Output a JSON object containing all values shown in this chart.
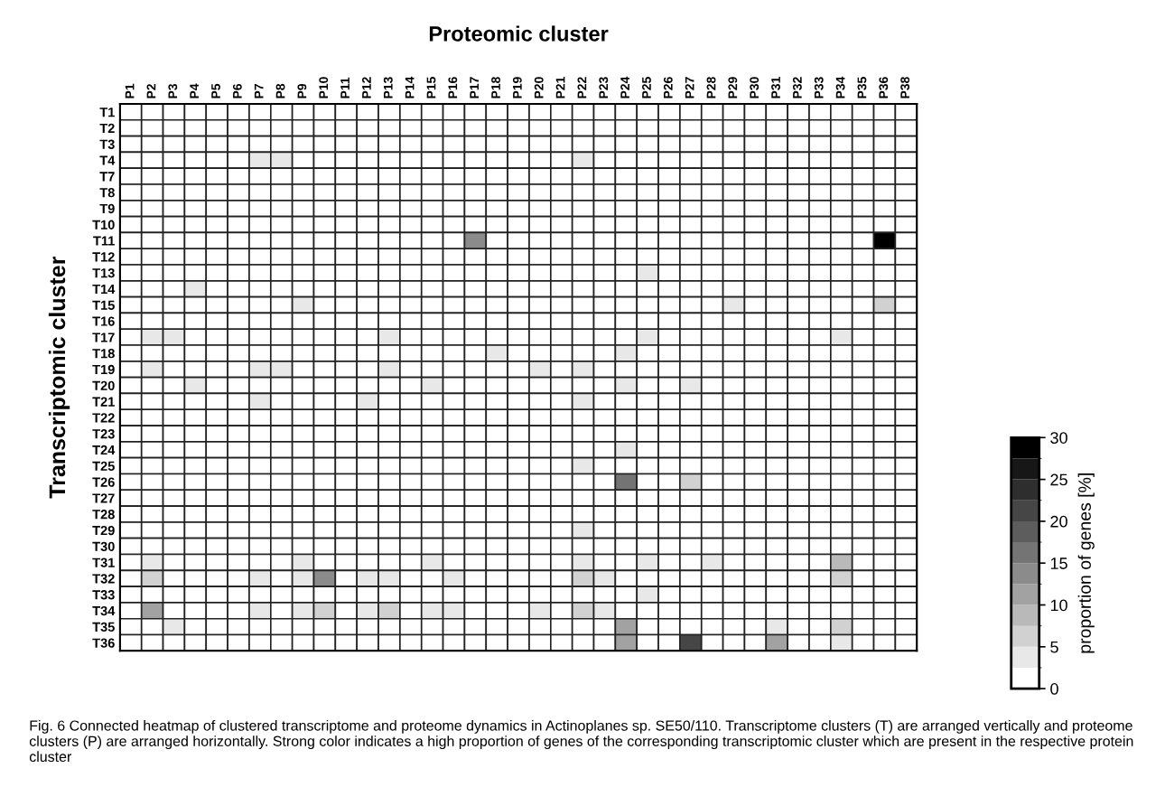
{
  "chart_data": {
    "type": "heatmap",
    "title": "Proteomic cluster",
    "ylabel": "Transcriptomic cluster",
    "clabel": "proportion of genes [%]",
    "categories": [
      "P1",
      "P2",
      "P3",
      "P4",
      "P5",
      "P6",
      "P7",
      "P8",
      "P9",
      "P10",
      "P11",
      "P12",
      "P13",
      "P14",
      "P15",
      "P16",
      "P17",
      "P18",
      "P19",
      "P20",
      "P21",
      "P22",
      "P23",
      "P24",
      "P25",
      "P26",
      "P27",
      "P28",
      "P29",
      "P30",
      "P31",
      "P32",
      "P33",
      "P34",
      "P35",
      "P36",
      "P38"
    ],
    "y_categories": [
      "T1",
      "T2",
      "T3",
      "T4",
      "T7",
      "T8",
      "T9",
      "T10",
      "T11",
      "T12",
      "T13",
      "T14",
      "T15",
      "T16",
      "T17",
      "T18",
      "T19",
      "T20",
      "T21",
      "T22",
      "T23",
      "T24",
      "T25",
      "T26",
      "T27",
      "T28",
      "T29",
      "T30",
      "T31",
      "T32",
      "T33",
      "T34",
      "T35",
      "T36"
    ],
    "clim": [
      0,
      30
    ],
    "cticks": [
      0,
      5,
      10,
      15,
      20,
      25,
      30
    ],
    "cells": [
      [
        0,
        0,
        0,
        0,
        0,
        0,
        0,
        0,
        0,
        0,
        0,
        0,
        0,
        0,
        0,
        0,
        0,
        0,
        0,
        0,
        0,
        0,
        0,
        0,
        0,
        0,
        0,
        0,
        0,
        0,
        0,
        0,
        0,
        0,
        0,
        0,
        0
      ],
      [
        1,
        0,
        1,
        2,
        1,
        2,
        0,
        0,
        0,
        0,
        0,
        0,
        1,
        1,
        1,
        0,
        1,
        0,
        0,
        0,
        0,
        0,
        0,
        2,
        1,
        0,
        0,
        0,
        1,
        0,
        0,
        1,
        0,
        1,
        0,
        0,
        1
      ],
      [
        0,
        0,
        0,
        0,
        0,
        0,
        0,
        0,
        0,
        0,
        0,
        0,
        0,
        0,
        0,
        0,
        0,
        0,
        0,
        0,
        0,
        0,
        0,
        0,
        0,
        0,
        0,
        0,
        0,
        0,
        0,
        0,
        0,
        0,
        0,
        0,
        0
      ],
      [
        0,
        2,
        0,
        1,
        1,
        1,
        3,
        3,
        1,
        2,
        0,
        2,
        2,
        0,
        0,
        2,
        1,
        0,
        1,
        2,
        0,
        4,
        0,
        0,
        1,
        0,
        0,
        2,
        0,
        0,
        0,
        0,
        0,
        0,
        0,
        0,
        0
      ],
      [
        0,
        0,
        0,
        0,
        0,
        0,
        0,
        0,
        0,
        0,
        0,
        0,
        0,
        0,
        0,
        0,
        0,
        0,
        0,
        0,
        0,
        0,
        0,
        0,
        0,
        0,
        0,
        0,
        0,
        0,
        0,
        0,
        0,
        1,
        0,
        0,
        0
      ],
      [
        0,
        0,
        0,
        0,
        0,
        0,
        0,
        0,
        0,
        0,
        0,
        0,
        0,
        0,
        0,
        0,
        1,
        0,
        0,
        0,
        0,
        0,
        0,
        0,
        0,
        0,
        0,
        0,
        0,
        0,
        0,
        0,
        1,
        0,
        0,
        0,
        0
      ],
      [
        0,
        0,
        0,
        0,
        0,
        0,
        0,
        0,
        0,
        0,
        0,
        0,
        0,
        0,
        0,
        0,
        0,
        0,
        0,
        0,
        0,
        0,
        0,
        0,
        0,
        0,
        0,
        0,
        0,
        0,
        0,
        0,
        0,
        0,
        0,
        0,
        0
      ],
      [
        1,
        1,
        0,
        1,
        1,
        0,
        0,
        0,
        0,
        0,
        0,
        1,
        0,
        0,
        0,
        0,
        0,
        0,
        0,
        0,
        0,
        0,
        0,
        0,
        0,
        0,
        1,
        2,
        0,
        0,
        0,
        0,
        0,
        1,
        0,
        0,
        0
      ],
      [
        0,
        0,
        0,
        0,
        0,
        0,
        0,
        0,
        0,
        0,
        0,
        0,
        0,
        0,
        0,
        0,
        13,
        0,
        0,
        0,
        0,
        0,
        0,
        0,
        0,
        0,
        0,
        0,
        0,
        0,
        0,
        0,
        0,
        0,
        0,
        30,
        0
      ],
      [
        0,
        0,
        0,
        0,
        0,
        0,
        0,
        0,
        0,
        0,
        0,
        0,
        0,
        0,
        0,
        0,
        0,
        0,
        0,
        0,
        0,
        0,
        0,
        0,
        0,
        0,
        0,
        0,
        0,
        0,
        0,
        0,
        0,
        0,
        0,
        0,
        0
      ],
      [
        0,
        1,
        2,
        0,
        0,
        0,
        2,
        2,
        0,
        0,
        0,
        0,
        1,
        1,
        0,
        0,
        0,
        0,
        0,
        0,
        1,
        1,
        0,
        0,
        3,
        0,
        0,
        0,
        0,
        0,
        0,
        0,
        0,
        1,
        0,
        0,
        0
      ],
      [
        0,
        0,
        0,
        3,
        0,
        1,
        0,
        2,
        0,
        1,
        0,
        0,
        0,
        0,
        0,
        2,
        1,
        1,
        0,
        0,
        0,
        0,
        0,
        2,
        0,
        0,
        0,
        0,
        0,
        1,
        0,
        0,
        0,
        0,
        0,
        0,
        1
      ],
      [
        0,
        0,
        0,
        0,
        1,
        0,
        0,
        0,
        3,
        0,
        0,
        0,
        0,
        0,
        0,
        0,
        2,
        1,
        0,
        0,
        0,
        0,
        0,
        0,
        0,
        0,
        0,
        0,
        3,
        0,
        0,
        0,
        0,
        0,
        0,
        7,
        0
      ],
      [
        0,
        0,
        0,
        0,
        0,
        0,
        0,
        0,
        0,
        0,
        0,
        0,
        0,
        0,
        0,
        0,
        0,
        2,
        0,
        0,
        0,
        0,
        0,
        1,
        0,
        0,
        0,
        0,
        0,
        0,
        0,
        0,
        0,
        0,
        0,
        0,
        0
      ],
      [
        0,
        4,
        3,
        1,
        1,
        1,
        2,
        1,
        2,
        1,
        0,
        1,
        3,
        0,
        2,
        1,
        1,
        0,
        0,
        1,
        1,
        2,
        1,
        0,
        3,
        0,
        1,
        1,
        0,
        0,
        0,
        0,
        1,
        3,
        1,
        0,
        0
      ],
      [
        0,
        0,
        0,
        0,
        0,
        0,
        0,
        0,
        0,
        0,
        0,
        0,
        0,
        0,
        0,
        0,
        0,
        4,
        0,
        0,
        0,
        0,
        0,
        4,
        0,
        1,
        1,
        0,
        0,
        0,
        1,
        0,
        2,
        1,
        2,
        0,
        0
      ],
      [
        0,
        4,
        2,
        0,
        1,
        1,
        3,
        3,
        0,
        2,
        1,
        2,
        3,
        0,
        2,
        1,
        1,
        1,
        0,
        4,
        0,
        3,
        2,
        0,
        1,
        0,
        0,
        0,
        2,
        0,
        0,
        0,
        0,
        2,
        0,
        0,
        0
      ],
      [
        0,
        1,
        2,
        3,
        0,
        1,
        1,
        0,
        0,
        1,
        0,
        1,
        1,
        0,
        3,
        0,
        1,
        1,
        0,
        0,
        0,
        1,
        1,
        3,
        1,
        0,
        4,
        0,
        0,
        0,
        1,
        1,
        1,
        0,
        0,
        0,
        0
      ],
      [
        0,
        1,
        0,
        0,
        1,
        2,
        3,
        1,
        2,
        2,
        1,
        4,
        2,
        0,
        1,
        2,
        1,
        1,
        1,
        1,
        0,
        4,
        0,
        0,
        2,
        0,
        0,
        1,
        1,
        1,
        0,
        0,
        0,
        2,
        0,
        0,
        0
      ],
      [
        0,
        0,
        0,
        0,
        1,
        0,
        0,
        0,
        0,
        0,
        0,
        0,
        0,
        1,
        0,
        0,
        0,
        0,
        1,
        1,
        0,
        1,
        0,
        0,
        0,
        0,
        0,
        0,
        1,
        0,
        0,
        0,
        0,
        1,
        0,
        0,
        0
      ],
      [
        0,
        0,
        0,
        0,
        0,
        0,
        0,
        0,
        0,
        0,
        0,
        0,
        0,
        0,
        0,
        0,
        1,
        0,
        1,
        1,
        1,
        0,
        0,
        1,
        1,
        0,
        0,
        0,
        0,
        0,
        0,
        0,
        0,
        1,
        0,
        0,
        0
      ],
      [
        0,
        0,
        1,
        1,
        0,
        0,
        0,
        0,
        0,
        0,
        0,
        0,
        0,
        0,
        0,
        0,
        2,
        2,
        0,
        0,
        0,
        0,
        0,
        4,
        0,
        0,
        2,
        0,
        0,
        0,
        0,
        0,
        0,
        1,
        0,
        0,
        0
      ],
      [
        0,
        2,
        1,
        1,
        1,
        1,
        1,
        2,
        0,
        0,
        0,
        0,
        0,
        0,
        0,
        0,
        0,
        0,
        0,
        0,
        0,
        3,
        0,
        2,
        1,
        0,
        1,
        0,
        0,
        0,
        1,
        0,
        1,
        0,
        0,
        0,
        0
      ],
      [
        0,
        0,
        0,
        0,
        0,
        1,
        0,
        0,
        0,
        0,
        0,
        0,
        0,
        0,
        0,
        2,
        0,
        1,
        1,
        1,
        2,
        0,
        0,
        15,
        0,
        0,
        5,
        1,
        0,
        1,
        2,
        1,
        1,
        0,
        0,
        0,
        0
      ],
      [
        0,
        0,
        0,
        0,
        0,
        0,
        0,
        0,
        0,
        0,
        0,
        0,
        0,
        0,
        0,
        0,
        0,
        0,
        0,
        0,
        0,
        0,
        0,
        0,
        0,
        0,
        0,
        0,
        0,
        0,
        0,
        0,
        0,
        0,
        0,
        0,
        0
      ],
      [
        1,
        0,
        0,
        0,
        0,
        0,
        0,
        0,
        0,
        0,
        0,
        0,
        0,
        0,
        0,
        0,
        0,
        0,
        0,
        0,
        0,
        0,
        0,
        0,
        0,
        0,
        0,
        0,
        0,
        0,
        0,
        0,
        0,
        0,
        0,
        0,
        0
      ],
      [
        0,
        2,
        1,
        0,
        0,
        2,
        2,
        1,
        0,
        0,
        0,
        0,
        2,
        0,
        0,
        2,
        0,
        0,
        0,
        0,
        0,
        3,
        1,
        0,
        0,
        0,
        0,
        0,
        0,
        0,
        0,
        0,
        0,
        2,
        0,
        0,
        0
      ],
      [
        0,
        1,
        0,
        1,
        0,
        1,
        0,
        1,
        0,
        0,
        1,
        1,
        1,
        0,
        0,
        0,
        0,
        2,
        0,
        0,
        0,
        2,
        0,
        0,
        0,
        0,
        0,
        1,
        1,
        0,
        0,
        0,
        1,
        0,
        0,
        0,
        0
      ],
      [
        0,
        4,
        0,
        2,
        1,
        0,
        1,
        0,
        4,
        1,
        0,
        1,
        2,
        0,
        3,
        1,
        2,
        0,
        0,
        0,
        0,
        4,
        0,
        0,
        3,
        0,
        0,
        3,
        0,
        0,
        1,
        0,
        0,
        8,
        1,
        0,
        0
      ],
      [
        0,
        7,
        0,
        0,
        0,
        0,
        4,
        1,
        3,
        13,
        0,
        3,
        4,
        0,
        1,
        4,
        2,
        0,
        0,
        0,
        0,
        6,
        4,
        0,
        0,
        0,
        0,
        0,
        1,
        0,
        0,
        0,
        0,
        5,
        0,
        0,
        0
      ],
      [
        0,
        0,
        0,
        2,
        0,
        0,
        0,
        0,
        0,
        0,
        0,
        0,
        0,
        0,
        2,
        0,
        1,
        0,
        0,
        0,
        0,
        0,
        0,
        1,
        3,
        0,
        0,
        0,
        0,
        0,
        0,
        0,
        0,
        0,
        0,
        0,
        0
      ],
      [
        0,
        12,
        2,
        1,
        0,
        0,
        4,
        2,
        3,
        6,
        1,
        4,
        7,
        0,
        3,
        3,
        2,
        0,
        0,
        3,
        0,
        5,
        3,
        0,
        0,
        0,
        0,
        0,
        0,
        0,
        0,
        0,
        0,
        0,
        0,
        0,
        0
      ],
      [
        0,
        1,
        4,
        0,
        0,
        0,
        0,
        0,
        0,
        0,
        0,
        0,
        0,
        0,
        2,
        0,
        0,
        0,
        0,
        0,
        0,
        0,
        0,
        12,
        0,
        0,
        1,
        0,
        0,
        0,
        3,
        0,
        0,
        6,
        0,
        0,
        0
      ],
      [
        0,
        0,
        0,
        0,
        0,
        0,
        0,
        0,
        0,
        0,
        0,
        0,
        0,
        0,
        0,
        0,
        0,
        0,
        0,
        0,
        0,
        0,
        0,
        10,
        0,
        0,
        22,
        0,
        0,
        0,
        12,
        0,
        1,
        3,
        0,
        0,
        0
      ]
    ],
    "annotations": [
      "Fig. 6 Connected heatmap of clustered transcriptome and proteome dynamics in Actinoplanes sp. SE50/110. Transcriptome clusters (T) are arranged vertically and proteome clusters (P) are arranged horizontally. Strong color indicates a high proportion of genes of the corresponding transcriptomic cluster which are present in the respective protein cluster"
    ]
  }
}
